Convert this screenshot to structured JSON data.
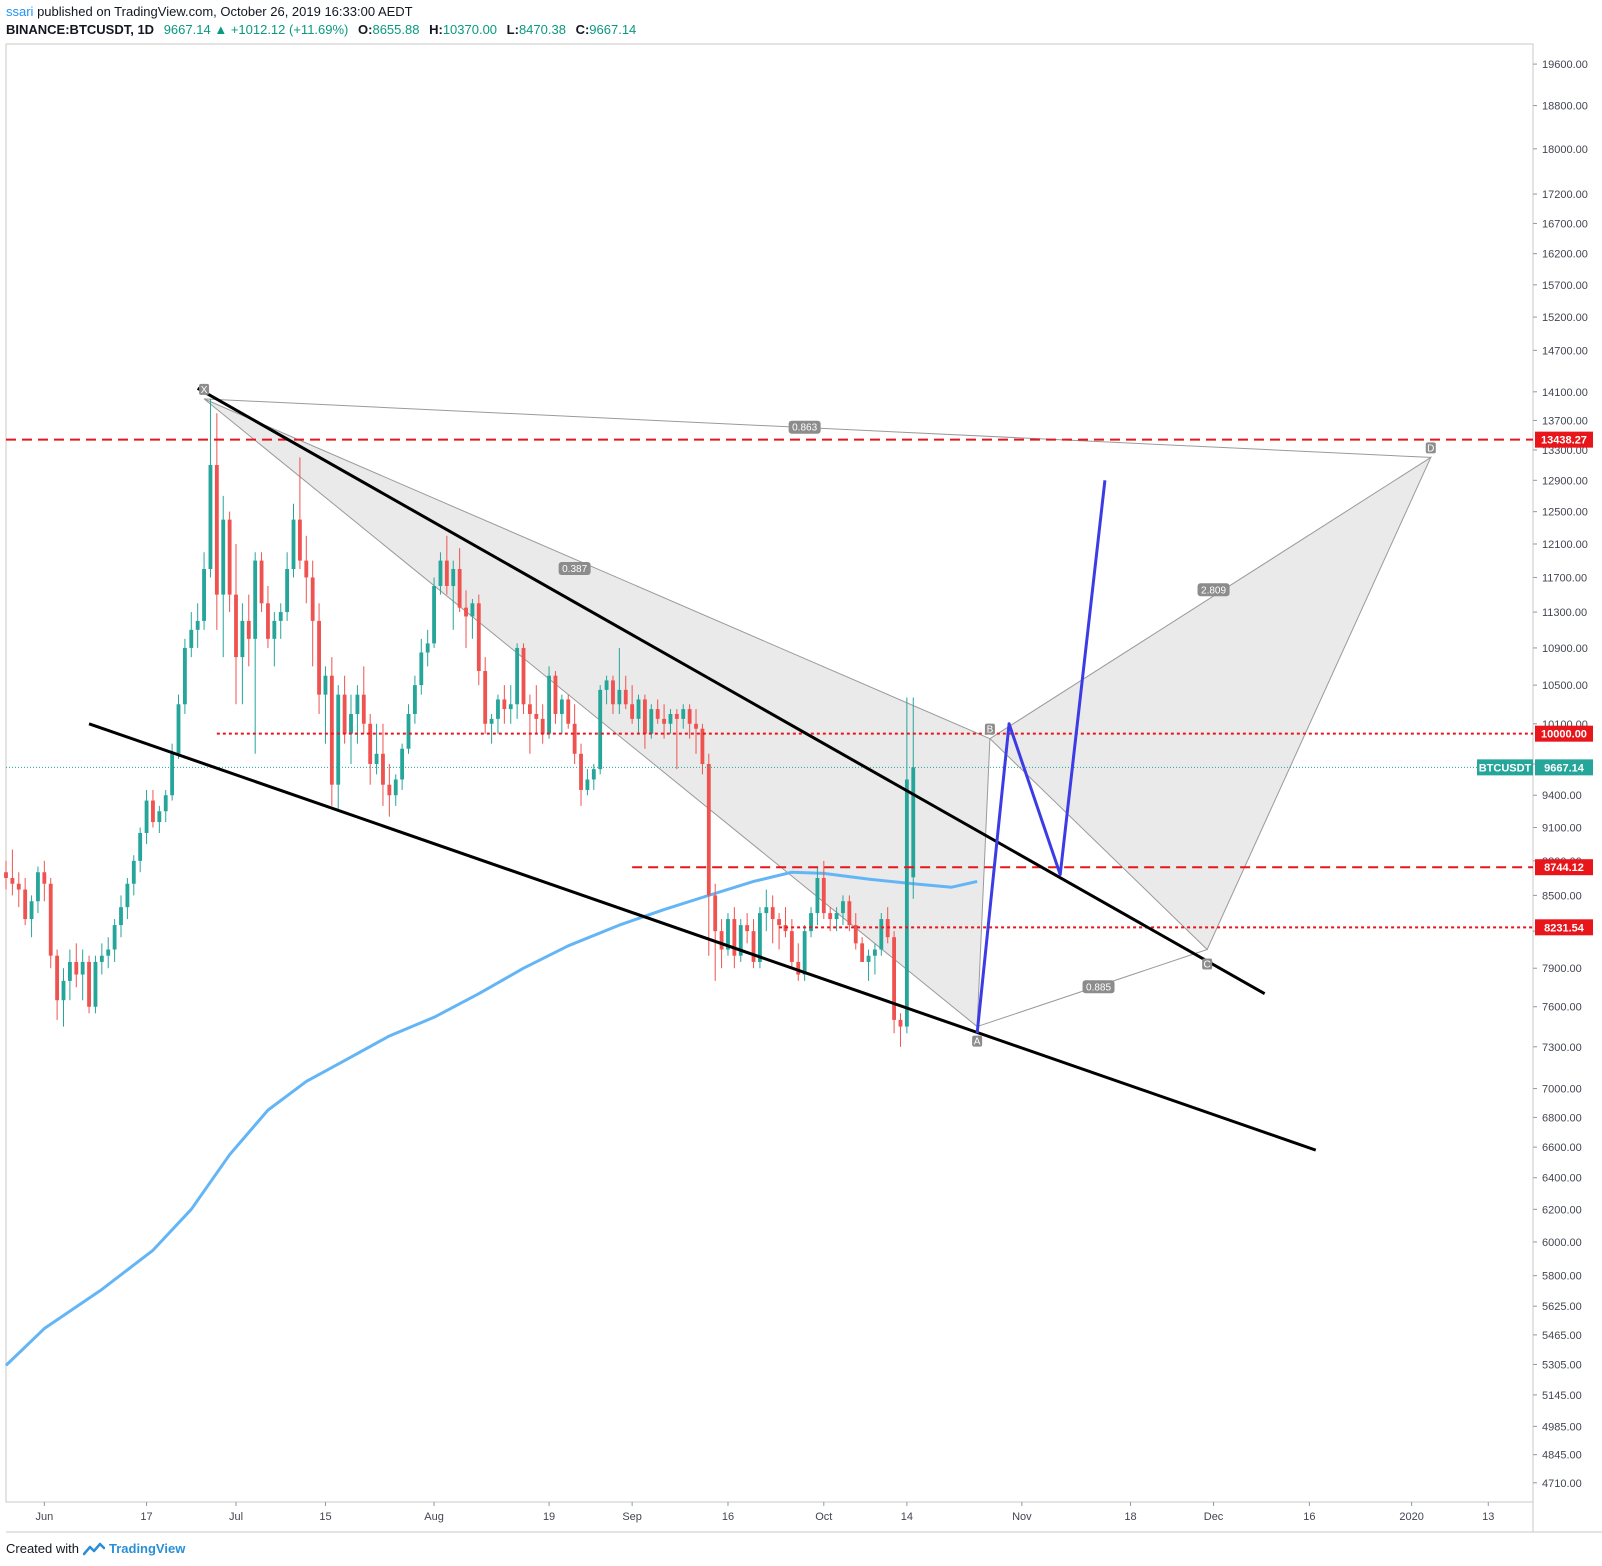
{
  "header": {
    "user": "ssari",
    "published_text": " published on TradingView.com, October 26, 2019 16:33:00 AEDT",
    "symbol": "BINANCE:BTCUSDT, 1D",
    "last": "9667.14",
    "change": "+1012.12 (+11.69%)",
    "o_label": "O:",
    "o_value": "8655.88",
    "h_label": "H:",
    "h_value": "10370.00",
    "l_label": "L:",
    "l_value": "8470.38",
    "c_label": "C:",
    "c_value": "9667.14"
  },
  "footer": {
    "created_with": "Created with",
    "brand": "TradingView"
  },
  "colors": {
    "up": "#26a69a",
    "down": "#ef5350",
    "ma": "#64b5f6",
    "level": "#e8151b",
    "projection": "#3c3ce6",
    "trendline": "#000000",
    "pattern_fill": "#e6e6e6",
    "pattern_stroke": "#9a9a9a",
    "price_tag": "#26a69a"
  },
  "chart_data": {
    "type": "candlestick",
    "symbol": "BTCUSDT",
    "timeframe": "1D",
    "y_scale": "log",
    "ylim": [
      4620,
      20000
    ],
    "y_ticks": [
      19600,
      18800,
      18000,
      17200,
      16700,
      16200,
      15700,
      15200,
      14700,
      14100,
      13700,
      13300,
      12900,
      12500,
      12100,
      11700,
      11300,
      10900,
      10500,
      10100,
      9700,
      9400,
      9100,
      8800,
      8500,
      8200,
      7900,
      7600,
      7300,
      7000,
      6800,
      6600,
      6400,
      6200,
      6000,
      5800,
      5625,
      5465,
      5305,
      5145,
      4985,
      4845,
      4710
    ],
    "y_tick_labels": [
      "19600.00",
      "18800.00",
      "18000.00",
      "17200.00",
      "16700.00",
      "16200.00",
      "15700.00",
      "15200.00",
      "14700.00",
      "14100.00",
      "13700.00",
      "13300.00",
      "12900.00",
      "12500.00",
      "12100.00",
      "11700.00",
      "11300.00",
      "10900.00",
      "10500.00",
      "10100.00",
      "9700.00",
      "9400.00",
      "9100.00",
      "8800.00",
      "8500.00",
      "8200.00",
      "7900.00",
      "7600.00",
      "7300.00",
      "7000.00",
      "6800.00",
      "6600.00",
      "6400.00",
      "6200.00",
      "6000.00",
      "5800.00",
      "5625.00",
      "5465.00",
      "5305.00",
      "5145.00",
      "4985.00",
      "4845.00",
      "4710.00"
    ],
    "x_start": "2019-05-26",
    "x_end": "2020-01-20",
    "x_ticks": [
      {
        "date": "2019-06-01",
        "label": "Jun"
      },
      {
        "date": "2019-06-17",
        "label": "17"
      },
      {
        "date": "2019-07-01",
        "label": "Jul"
      },
      {
        "date": "2019-07-15",
        "label": "15"
      },
      {
        "date": "2019-08-01",
        "label": "Aug"
      },
      {
        "date": "2019-08-19",
        "label": "19"
      },
      {
        "date": "2019-09-01",
        "label": "Sep"
      },
      {
        "date": "2019-09-16",
        "label": "16"
      },
      {
        "date": "2019-10-01",
        "label": "Oct"
      },
      {
        "date": "2019-10-14",
        "label": "14"
      },
      {
        "date": "2019-11-01",
        "label": "Nov"
      },
      {
        "date": "2019-11-18",
        "label": "18"
      },
      {
        "date": "2019-12-01",
        "label": "Dec"
      },
      {
        "date": "2019-12-16",
        "label": "16"
      },
      {
        "date": "2020-01-01",
        "label": "2020"
      },
      {
        "date": "2020-01-13",
        "label": "13"
      }
    ],
    "candles_start": "2019-05-26",
    "candles": [
      [
        8700,
        8800,
        8550,
        8650
      ],
      [
        8650,
        8900,
        8500,
        8600
      ],
      [
        8600,
        8700,
        8400,
        8550
      ],
      [
        8550,
        8650,
        8250,
        8300
      ],
      [
        8300,
        8500,
        8150,
        8450
      ],
      [
        8450,
        8750,
        8350,
        8700
      ],
      [
        8700,
        8800,
        8450,
        8600
      ],
      [
        8600,
        8650,
        7900,
        8000
      ],
      [
        8000,
        8050,
        7500,
        7650
      ],
      [
        7650,
        7900,
        7450,
        7800
      ],
      [
        7800,
        8050,
        7650,
        7950
      ],
      [
        7950,
        8100,
        7750,
        7850
      ],
      [
        7850,
        8050,
        7650,
        7950
      ],
      [
        7950,
        8000,
        7550,
        7600
      ],
      [
        7600,
        8000,
        7550,
        7950
      ],
      [
        7950,
        8100,
        7850,
        8000
      ],
      [
        8000,
        8150,
        7900,
        8050
      ],
      [
        8050,
        8300,
        7950,
        8250
      ],
      [
        8250,
        8500,
        8150,
        8400
      ],
      [
        8400,
        8650,
        8300,
        8600
      ],
      [
        8600,
        8850,
        8500,
        8800
      ],
      [
        8800,
        9100,
        8700,
        9050
      ],
      [
        9050,
        9450,
        8950,
        9350
      ],
      [
        9350,
        9450,
        9100,
        9150
      ],
      [
        9150,
        9300,
        9050,
        9250
      ],
      [
        9250,
        9450,
        9150,
        9400
      ],
      [
        9400,
        9900,
        9350,
        9800
      ],
      [
        9800,
        10400,
        9750,
        10300
      ],
      [
        10300,
        11000,
        10200,
        10900
      ],
      [
        10900,
        11300,
        10800,
        11100
      ],
      [
        11100,
        11400,
        10900,
        11200
      ],
      [
        11200,
        12000,
        11100,
        11800
      ],
      [
        11800,
        14000,
        11700,
        13100
      ],
      [
        13100,
        13800,
        11100,
        11500
      ],
      [
        11500,
        12700,
        10800,
        12400
      ],
      [
        12400,
        12500,
        11300,
        11500
      ],
      [
        11500,
        12100,
        10300,
        10800
      ],
      [
        10800,
        11400,
        10300,
        11200
      ],
      [
        11200,
        11500,
        10700,
        11000
      ],
      [
        11000,
        12000,
        9800,
        11900
      ],
      [
        11900,
        12000,
        11300,
        11400
      ],
      [
        11400,
        11600,
        10900,
        11000
      ],
      [
        11000,
        11300,
        10700,
        11200
      ],
      [
        11200,
        11400,
        11000,
        11300
      ],
      [
        11300,
        12000,
        11200,
        11800
      ],
      [
        11800,
        12600,
        11700,
        12400
      ],
      [
        12400,
        13200,
        11800,
        11900
      ],
      [
        11900,
        12200,
        11400,
        11700
      ],
      [
        11700,
        11900,
        10700,
        11200
      ],
      [
        11200,
        11400,
        10200,
        10400
      ],
      [
        10400,
        10700,
        9900,
        10600
      ],
      [
        10600,
        10800,
        9300,
        9500
      ],
      [
        9500,
        10500,
        9250,
        10400
      ],
      [
        10400,
        10600,
        9900,
        10000
      ],
      [
        10000,
        10400,
        9700,
        10200
      ],
      [
        10200,
        10500,
        9900,
        10400
      ],
      [
        10400,
        10700,
        10000,
        10100
      ],
      [
        10100,
        10200,
        9500,
        9700
      ],
      [
        9700,
        10100,
        9600,
        9800
      ],
      [
        9800,
        10100,
        9300,
        9500
      ],
      [
        9500,
        9700,
        9200,
        9400
      ],
      [
        9400,
        9600,
        9300,
        9550
      ],
      [
        9550,
        9900,
        9450,
        9850
      ],
      [
        9850,
        10300,
        9800,
        10200
      ],
      [
        10200,
        10600,
        10100,
        10500
      ],
      [
        10500,
        11000,
        10400,
        10850
      ],
      [
        10850,
        11100,
        10700,
        10950
      ],
      [
        10950,
        11700,
        10900,
        11600
      ],
      [
        11600,
        12000,
        11500,
        11900
      ],
      [
        11900,
        12200,
        11500,
        11600
      ],
      [
        11600,
        11900,
        11100,
        11800
      ],
      [
        11800,
        12050,
        11300,
        11350
      ],
      [
        11350,
        11550,
        10900,
        11250
      ],
      [
        11250,
        11450,
        11000,
        11400
      ],
      [
        11400,
        11500,
        10500,
        10650
      ],
      [
        10650,
        10800,
        10000,
        10100
      ],
      [
        10100,
        10200,
        9900,
        10150
      ],
      [
        10150,
        10400,
        10000,
        10350
      ],
      [
        10350,
        10500,
        10100,
        10250
      ],
      [
        10250,
        10500,
        10100,
        10300
      ],
      [
        10300,
        10950,
        10150,
        10900
      ],
      [
        10900,
        10950,
        10200,
        10300
      ],
      [
        10300,
        10400,
        9800,
        10200
      ],
      [
        10200,
        10500,
        10000,
        10150
      ],
      [
        10150,
        10300,
        9900,
        10000
      ],
      [
        10000,
        10700,
        9950,
        10600
      ],
      [
        10600,
        10650,
        10100,
        10200
      ],
      [
        10200,
        10400,
        10000,
        10350
      ],
      [
        10350,
        10400,
        10050,
        10100
      ],
      [
        10100,
        10300,
        9700,
        9800
      ],
      [
        9800,
        9900,
        9300,
        9450
      ],
      [
        9450,
        9650,
        9400,
        9550
      ],
      [
        9550,
        9700,
        9450,
        9650
      ],
      [
        9650,
        10500,
        9600,
        10450
      ],
      [
        10450,
        10600,
        10300,
        10550
      ],
      [
        10550,
        10600,
        10200,
        10300
      ],
      [
        10300,
        10900,
        10200,
        10450
      ],
      [
        10450,
        10600,
        10250,
        10300
      ],
      [
        10300,
        10500,
        10100,
        10150
      ],
      [
        10150,
        10400,
        10000,
        10350
      ],
      [
        10350,
        10400,
        9850,
        10000
      ],
      [
        10000,
        10300,
        9950,
        10250
      ],
      [
        10250,
        10350,
        10100,
        10150
      ],
      [
        10150,
        10300,
        9950,
        10100
      ],
      [
        10100,
        10250,
        10000,
        10200
      ],
      [
        10200,
        10250,
        9650,
        10150
      ],
      [
        10150,
        10300,
        10050,
        10250
      ],
      [
        10250,
        10300,
        9950,
        10100
      ],
      [
        10100,
        10250,
        9800,
        10050
      ],
      [
        10050,
        10100,
        9600,
        9700
      ],
      [
        9700,
        9800,
        8000,
        8500
      ],
      [
        8500,
        8600,
        7800,
        8200
      ],
      [
        8200,
        8300,
        7900,
        8050
      ],
      [
        8050,
        8350,
        8000,
        8300
      ],
      [
        8300,
        8400,
        7900,
        8000
      ],
      [
        8000,
        8300,
        7950,
        8250
      ],
      [
        8250,
        8350,
        8100,
        8200
      ],
      [
        8200,
        8300,
        7900,
        7950
      ],
      [
        7950,
        8400,
        7900,
        8350
      ],
      [
        8350,
        8550,
        8200,
        8400
      ],
      [
        8400,
        8500,
        8100,
        8300
      ],
      [
        8300,
        8350,
        8050,
        8250
      ],
      [
        8250,
        8400,
        8150,
        8200
      ],
      [
        8200,
        8300,
        7900,
        7950
      ],
      [
        7950,
        8100,
        7800,
        7850
      ],
      [
        7850,
        8250,
        7800,
        8200
      ],
      [
        8200,
        8400,
        8150,
        8350
      ],
      [
        8350,
        8750,
        8250,
        8650
      ],
      [
        8650,
        8800,
        8300,
        8350
      ],
      [
        8350,
        8400,
        8200,
        8300
      ],
      [
        8300,
        8400,
        8200,
        8350
      ],
      [
        8350,
        8500,
        8250,
        8450
      ],
      [
        8450,
        8500,
        8200,
        8250
      ],
      [
        8250,
        8350,
        8050,
        8100
      ],
      [
        8100,
        8150,
        7950,
        7950
      ],
      [
        7950,
        8050,
        7800,
        8000
      ],
      [
        8000,
        8100,
        7850,
        8050
      ],
      [
        8050,
        8350,
        8000,
        8300
      ],
      [
        8300,
        8400,
        8100,
        8150
      ],
      [
        8150,
        8200,
        7400,
        7500
      ],
      [
        7500,
        7550,
        7300,
        7450
      ],
      [
        7450,
        10370,
        7400,
        9550
      ],
      [
        8655.88,
        10370,
        8470.38,
        9667.14
      ]
    ],
    "ma_label": "moving average (blue)",
    "ma_points": [
      [
        "2019-05-26",
        5300
      ],
      [
        "2019-06-01",
        5500
      ],
      [
        "2019-06-10",
        5720
      ],
      [
        "2019-06-18",
        5950
      ],
      [
        "2019-06-24",
        6200
      ],
      [
        "2019-06-30",
        6550
      ],
      [
        "2019-07-06",
        6850
      ],
      [
        "2019-07-12",
        7050
      ],
      [
        "2019-07-18",
        7200
      ],
      [
        "2019-07-25",
        7380
      ],
      [
        "2019-08-01",
        7520
      ],
      [
        "2019-08-08",
        7700
      ],
      [
        "2019-08-15",
        7900
      ],
      [
        "2019-08-22",
        8080
      ],
      [
        "2019-08-30",
        8250
      ],
      [
        "2019-09-06",
        8380
      ],
      [
        "2019-09-13",
        8500
      ],
      [
        "2019-09-20",
        8620
      ],
      [
        "2019-09-26",
        8700
      ],
      [
        "2019-10-01",
        8690
      ],
      [
        "2019-10-08",
        8640
      ],
      [
        "2019-10-15",
        8600
      ],
      [
        "2019-10-21",
        8570
      ],
      [
        "2019-10-25",
        8620
      ]
    ],
    "levels": [
      {
        "price": 13438.27,
        "label": "13438.27",
        "style": "dashed",
        "x_from": "2019-05-26"
      },
      {
        "price": 10000.0,
        "label": "10000.00",
        "style": "dotted",
        "x_from": "2019-06-28"
      },
      {
        "price": 8744.12,
        "label": "8744.12",
        "style": "dashed",
        "x_from": "2019-09-01"
      },
      {
        "price": 8231.54,
        "label": "8231.54",
        "style": "dotted",
        "x_from": "2019-09-24"
      }
    ],
    "last_price": {
      "symbol": "BTCUSDT",
      "price": 9667.14,
      "label": "9667.14"
    },
    "trendlines": [
      {
        "from": [
          "2019-06-25",
          14150
        ],
        "to": [
          "2019-12-09",
          7700
        ]
      },
      {
        "from": [
          "2019-06-08",
          10100
        ],
        "to": [
          "2019-12-17",
          6580
        ]
      }
    ],
    "harmonic": {
      "points": [
        {
          "name": "X",
          "date": "2019-06-26",
          "price": 14000
        },
        {
          "name": "A",
          "date": "2019-10-25",
          "price": 7450
        },
        {
          "name": "B",
          "date": "2019-10-27",
          "price": 9950
        },
        {
          "name": "C",
          "date": "2019-11-30",
          "price": 8050
        },
        {
          "name": "D",
          "date": "2020-01-04",
          "price": 13200
        }
      ],
      "ratios": [
        {
          "label": "0.387",
          "date": "2019-08-23",
          "price": 11800
        },
        {
          "label": "0.863",
          "date": "2019-09-28",
          "price": 13600
        },
        {
          "label": "2.809",
          "date": "2019-12-01",
          "price": 11550
        },
        {
          "label": "0.885",
          "date": "2019-11-13",
          "price": 7750
        }
      ]
    },
    "projection": [
      [
        "2019-10-25",
        7400
      ],
      [
        "2019-10-30",
        10100
      ],
      [
        "2019-11-07",
        8680
      ],
      [
        "2019-11-14",
        12900
      ]
    ]
  }
}
